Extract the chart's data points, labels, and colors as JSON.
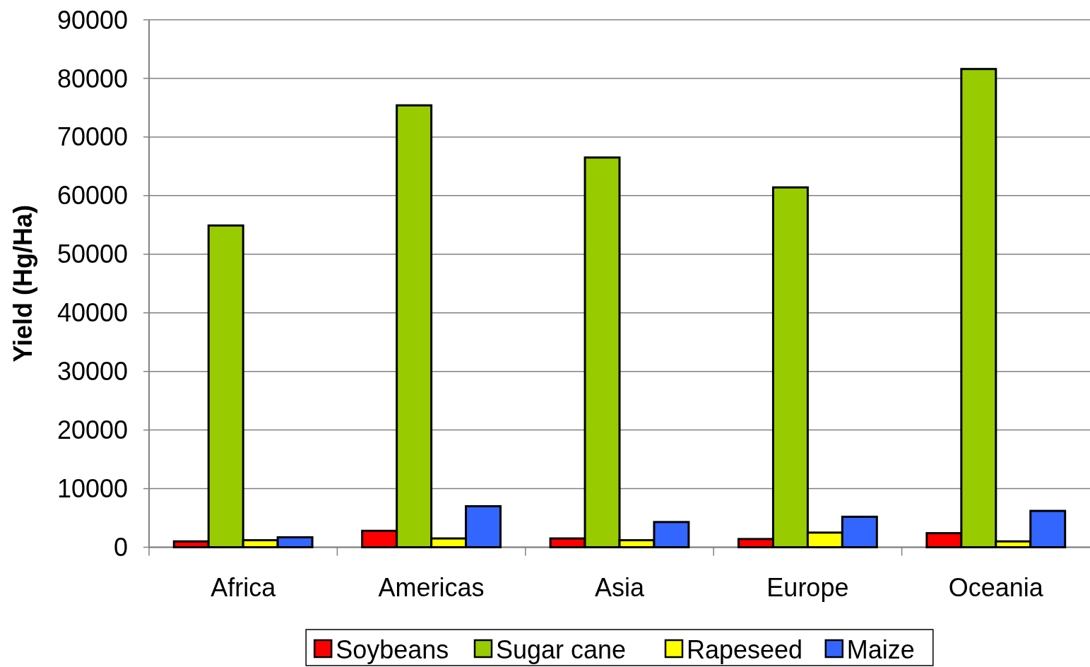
{
  "chart_data": {
    "type": "bar",
    "ylabel": "Yield (Hg/Ha)",
    "categories": [
      "Africa",
      "Americas",
      "Asia",
      "Europe",
      "Oceania"
    ],
    "series": [
      {
        "name": "Soybeans",
        "color": "#ff0000",
        "values": [
          1000,
          2800,
          1500,
          1400,
          2400
        ]
      },
      {
        "name": "Sugar cane",
        "color": "#99cc00",
        "values": [
          54900,
          75400,
          66500,
          61400,
          81600
        ]
      },
      {
        "name": "Rapeseed",
        "color": "#ffff00",
        "values": [
          1200,
          1500,
          1200,
          2500,
          1000
        ]
      },
      {
        "name": "Maize",
        "color": "#3366ff",
        "values": [
          1700,
          7000,
          4300,
          5200,
          6200
        ]
      }
    ],
    "ylim": [
      0,
      90000
    ],
    "yticks": [
      0,
      10000,
      20000,
      30000,
      40000,
      50000,
      60000,
      70000,
      80000,
      90000
    ],
    "grid": "y",
    "legend": "bottom"
  }
}
